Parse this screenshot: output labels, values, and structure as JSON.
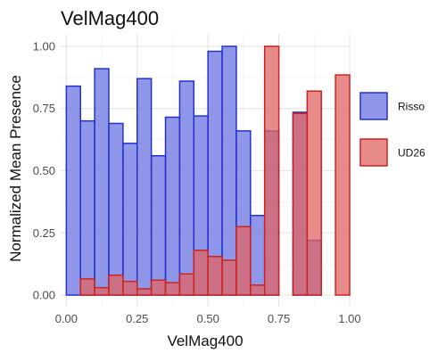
{
  "chart_data": {
    "type": "bar",
    "title": "VelMag400",
    "xlabel": "VelMag400",
    "ylabel": "Normalized Mean Presence",
    "xlim": [
      -0.02,
      1.0
    ],
    "ylim": [
      -0.05,
      1.05
    ],
    "x_ticks": [
      {
        "value": 0.0,
        "label": "0.00"
      },
      {
        "value": 0.25,
        "label": "0.25"
      },
      {
        "value": 0.5,
        "label": "0.50"
      },
      {
        "value": 0.75,
        "label": "0.75"
      },
      {
        "value": 1.0,
        "label": "1.00"
      }
    ],
    "y_ticks": [
      {
        "value": 0.0,
        "label": "0.00"
      },
      {
        "value": 0.25,
        "label": "0.25"
      },
      {
        "value": 0.5,
        "label": "0.50"
      },
      {
        "value": 0.75,
        "label": "0.75"
      },
      {
        "value": 1.0,
        "label": "1.00"
      }
    ],
    "bin_width": 0.05,
    "grid": true,
    "legend_position": "right",
    "series": [
      {
        "name": "Risso",
        "fill": "#6b74e0",
        "stroke": "#2233cc",
        "opacity": 0.75,
        "bins": [
          {
            "x": 0.025,
            "y": 0.84
          },
          {
            "x": 0.075,
            "y": 0.7
          },
          {
            "x": 0.125,
            "y": 0.91
          },
          {
            "x": 0.175,
            "y": 0.69
          },
          {
            "x": 0.225,
            "y": 0.61
          },
          {
            "x": 0.275,
            "y": 0.87
          },
          {
            "x": 0.325,
            "y": 0.56
          },
          {
            "x": 0.375,
            "y": 0.715
          },
          {
            "x": 0.425,
            "y": 0.86
          },
          {
            "x": 0.475,
            "y": 0.72
          },
          {
            "x": 0.525,
            "y": 0.98
          },
          {
            "x": 0.575,
            "y": 1.0
          },
          {
            "x": 0.625,
            "y": 0.66
          },
          {
            "x": 0.675,
            "y": 0.32
          },
          {
            "x": 0.725,
            "y": 0.66
          },
          {
            "x": 0.825,
            "y": 0.735
          },
          {
            "x": 0.875,
            "y": 0.22
          }
        ]
      },
      {
        "name": "UD26",
        "fill": "#e06464",
        "stroke": "#cc2222",
        "opacity": 0.75,
        "bins": [
          {
            "x": 0.075,
            "y": 0.065
          },
          {
            "x": 0.125,
            "y": 0.03
          },
          {
            "x": 0.175,
            "y": 0.08
          },
          {
            "x": 0.225,
            "y": 0.055
          },
          {
            "x": 0.275,
            "y": 0.025
          },
          {
            "x": 0.325,
            "y": 0.06
          },
          {
            "x": 0.375,
            "y": 0.05
          },
          {
            "x": 0.425,
            "y": 0.085
          },
          {
            "x": 0.475,
            "y": 0.18
          },
          {
            "x": 0.525,
            "y": 0.155
          },
          {
            "x": 0.575,
            "y": 0.14
          },
          {
            "x": 0.625,
            "y": 0.275
          },
          {
            "x": 0.675,
            "y": 0.04
          },
          {
            "x": 0.725,
            "y": 1.0
          },
          {
            "x": 0.825,
            "y": 0.73
          },
          {
            "x": 0.875,
            "y": 0.82
          },
          {
            "x": 0.975,
            "y": 0.885
          }
        ]
      }
    ]
  }
}
